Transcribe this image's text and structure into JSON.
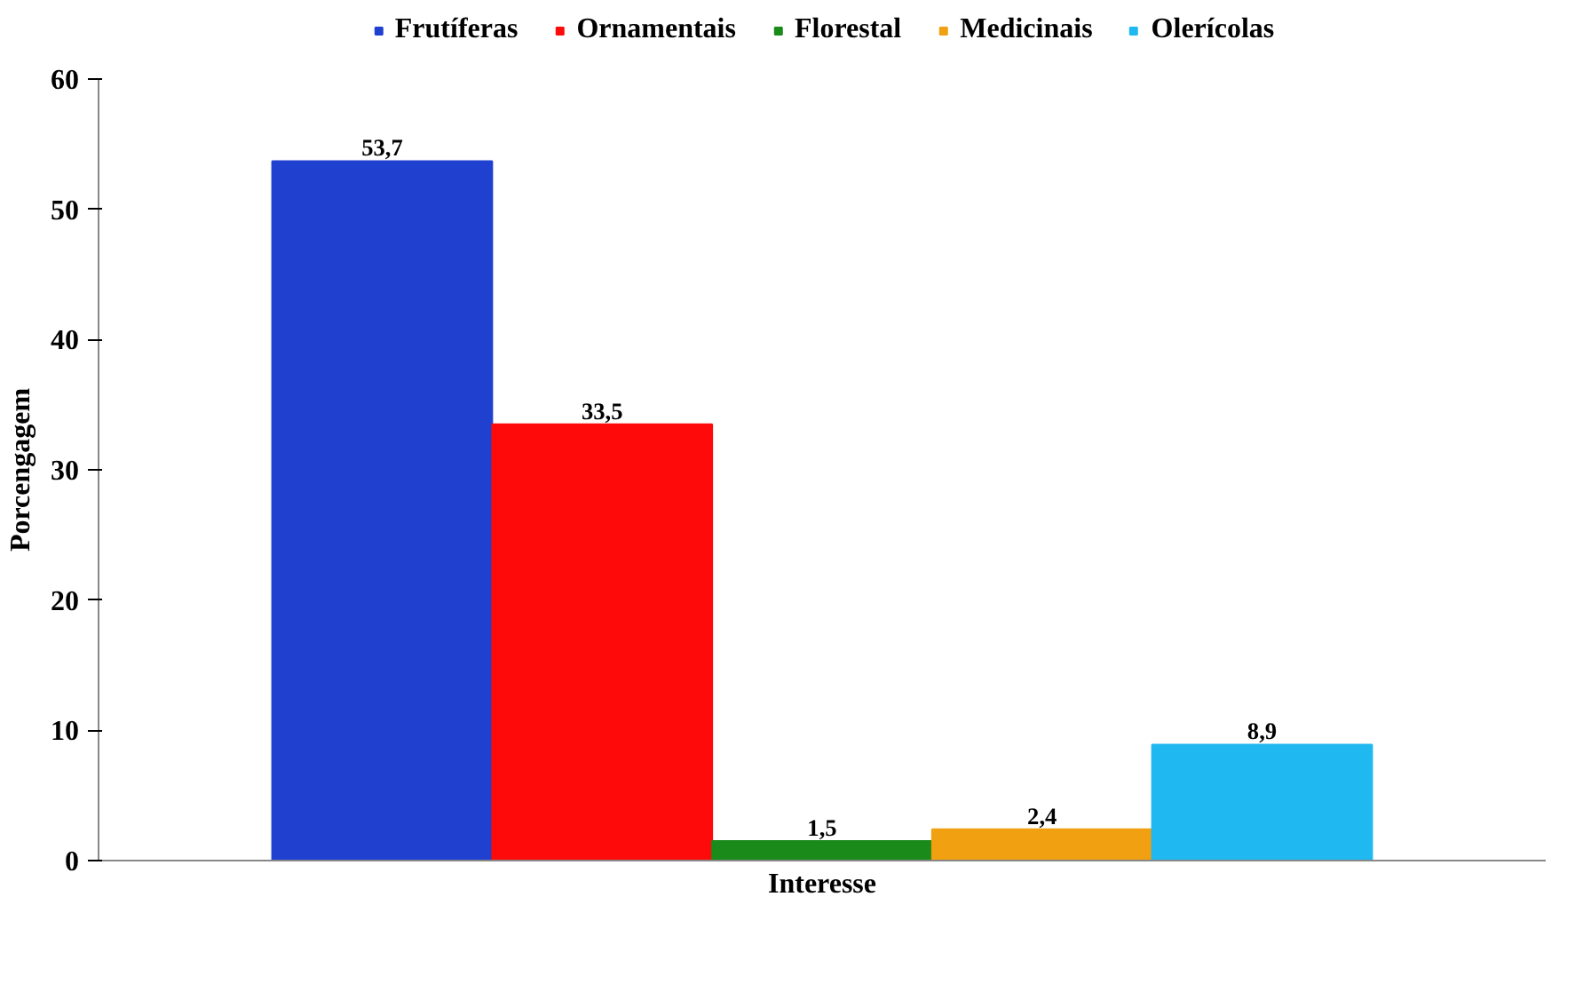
{
  "chart_data": {
    "type": "bar",
    "xlabel": "Interesse",
    "ylabel": "Porcengagem",
    "categories": [
      null
    ],
    "series": [
      {
        "name": "Frutíferas",
        "color": "#2040d0",
        "values": [
          53.7
        ],
        "value_labels": [
          "53,7"
        ]
      },
      {
        "name": "Ornamentais",
        "color": "#ff0a0a",
        "values": [
          33.5
        ],
        "value_labels": [
          "33,5"
        ]
      },
      {
        "name": "Florestal",
        "color": "#1a8a1a",
        "values": [
          1.5
        ],
        "value_labels": [
          "1,5"
        ]
      },
      {
        "name": "Medicinais",
        "color": "#f0a010",
        "values": [
          2.4
        ],
        "value_labels": [
          "2,4"
        ]
      },
      {
        "name": "Olerícolas",
        "color": "#20b8f0",
        "values": [
          8.9
        ],
        "value_labels": [
          "8,9"
        ]
      }
    ],
    "ylim": [
      0,
      60
    ],
    "yticks": [
      0,
      10,
      20,
      30,
      40,
      50,
      60
    ],
    "legend": "top"
  }
}
